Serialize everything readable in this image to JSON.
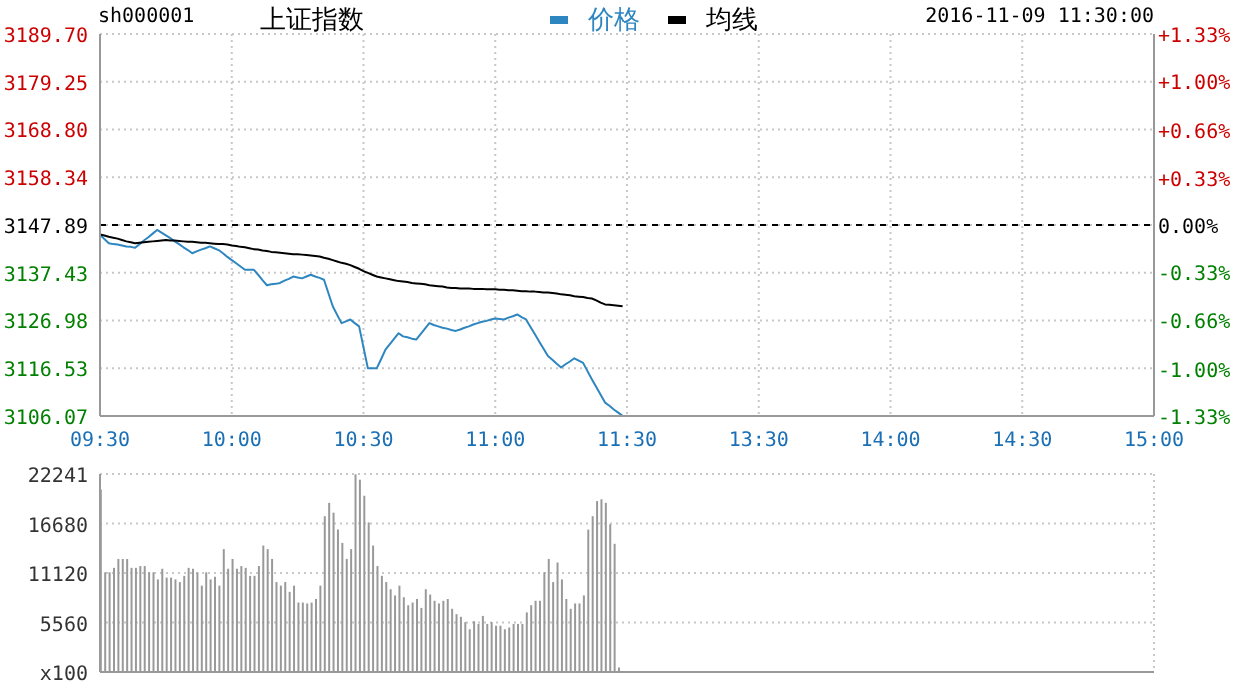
{
  "chart_data": [
    {
      "type": "line",
      "title": "上证指数",
      "annotations": [
        "sh000001",
        "2016-11-09 11:30:00"
      ],
      "categories": [
        "09:30",
        null,
        null,
        null,
        null,
        null,
        null,
        null,
        null,
        null,
        null,
        null,
        null,
        null,
        null,
        null,
        null,
        null,
        null,
        null,
        null,
        null,
        null,
        null,
        null,
        null,
        null,
        null,
        null,
        null,
        "10:00",
        null,
        null,
        null,
        null,
        null,
        null,
        null,
        null,
        null,
        null,
        null,
        null,
        null,
        null,
        null,
        null,
        null,
        null,
        null,
        null,
        null,
        null,
        null,
        null,
        null,
        null,
        null,
        null,
        null,
        "10:30",
        null,
        null,
        null,
        null,
        null,
        null,
        null,
        null,
        null,
        null,
        null,
        null,
        null,
        null,
        null,
        null,
        null,
        null,
        null,
        null,
        null,
        null,
        null,
        null,
        null,
        null,
        null,
        null,
        null,
        "11:00",
        null,
        null,
        null,
        null,
        null,
        null,
        null,
        null,
        null,
        null,
        null,
        null,
        null,
        null,
        null,
        null,
        null,
        null,
        null,
        null,
        null,
        null,
        null,
        null,
        null,
        null,
        null,
        null,
        null,
        "11:30",
        null,
        null,
        null,
        null,
        null,
        null,
        null,
        null,
        null,
        null,
        null,
        null,
        null,
        null,
        null,
        null,
        null,
        null,
        null,
        null,
        null,
        null,
        null,
        null,
        null,
        null,
        null,
        null,
        null,
        "13:30",
        null,
        null,
        null,
        null,
        null,
        null,
        null,
        null,
        null,
        null,
        null,
        null,
        null,
        null,
        null,
        null,
        null,
        null,
        null,
        null,
        null,
        null,
        null,
        null,
        null,
        null,
        null,
        null,
        null,
        "14:00",
        null,
        null,
        null,
        null,
        null,
        null,
        null,
        null,
        null,
        null,
        null,
        null,
        null,
        null,
        null,
        null,
        null,
        null,
        null,
        null,
        null,
        null,
        null,
        null,
        null,
        null,
        null,
        null,
        null,
        "14:30",
        null,
        null,
        null,
        null,
        null,
        null,
        null,
        null,
        null,
        null,
        null,
        null,
        null,
        null,
        null,
        null,
        null,
        null,
        null,
        null,
        null,
        null,
        null,
        null,
        null,
        null,
        null,
        null,
        null,
        "15:00"
      ],
      "ylim": [
        3106.07,
        3189.7
      ],
      "yticks": [
        3106.07,
        3116.53,
        3126.98,
        3137.43,
        3147.89,
        3158.34,
        {
          "value": 3168.8,
          "label": "3168.80"
        },
        3179.25,
        {
          "value": 3189.7,
          "label": "3189.70"
        }
      ],
      "y2lim": [
        -1.33,
        1.33
      ],
      "y2ticks": [
        {
          "value": -1.33,
          "label": "-1.33%"
        },
        {
          "value": -1.0,
          "label": "-1.00%"
        },
        {
          "value": -0.66,
          "label": "-0.66%"
        },
        {
          "value": -0.33,
          "label": "-0.33%"
        },
        {
          "value": 0,
          "label": "0.00%"
        },
        {
          "value": 0.33,
          "label": "+0.33%"
        },
        {
          "value": 0.66,
          "label": "+0.66%"
        },
        {
          "value": 1.0,
          "label": "+1.00%"
        },
        {
          "value": 1.33,
          "label": "+1.33%"
        }
      ],
      "grid": true,
      "legend": "top",
      "marker": "none",
      "ref_lines": [
        {
          "axis": "y",
          "value": 3147.89,
          "color": "#000000",
          "line_style": "dashed"
        }
      ],
      "series": [
        {
          "name": "价格",
          "color": "#2e86c1",
          "values": [
            3145.8,
            3144.8,
            3143.9,
            3143.7,
            3143.6,
            3143.4,
            3143.2,
            3143.1,
            3142.9,
            3143.7,
            3144.5,
            3145.2,
            3146.0,
            3146.8,
            3146.2,
            3145.6,
            3145.0,
            3144.3,
            3143.7,
            3143.0,
            3142.4,
            3141.7,
            3142.1,
            3142.5,
            3142.8,
            3143.2,
            3142.8,
            3142.4,
            3141.7,
            3140.9,
            3140.2,
            3139.5,
            3138.8,
            3138.1,
            3138.1,
            3138.1,
            3137.0,
            3135.8,
            3134.7,
            3134.9,
            3135.0,
            3135.2,
            3135.7,
            3136.1,
            3136.6,
            3136.4,
            3136.2,
            3136.6,
            3137.0,
            3136.6,
            3136.3,
            3135.9,
            3133.0,
            3130.1,
            3128.2,
            3126.4,
            3126.8,
            3127.2,
            3126.4,
            3125.7,
            3121.1,
            3116.5,
            3116.5,
            3116.5,
            3118.5,
            3120.6,
            3121.8,
            3123.0,
            3124.2,
            3123.5,
            3123.3,
            3123.0,
            3122.8,
            3124.0,
            3125.2,
            3126.4,
            3126.0,
            3125.7,
            3125.4,
            3125.2,
            3124.9,
            3124.7,
            3125.0,
            3125.4,
            3125.7,
            3126.1,
            3126.4,
            3126.7,
            3126.9,
            3127.2,
            3127.4,
            3127.3,
            3127.2,
            3127.6,
            3127.9,
            3128.3,
            3127.7,
            3127.2,
            3125.6,
            3124.0,
            3122.4,
            3120.8,
            3119.2,
            3118.4,
            3117.5,
            3116.7,
            3117.4,
            3118.0,
            3118.7,
            3118.2,
            3117.7,
            3115.9,
            3114.1,
            3112.4,
            3110.7,
            3109.0,
            3108.3,
            3107.5,
            3106.8,
            3106.1,
            null,
            null,
            null,
            null,
            null,
            null,
            null,
            null,
            null,
            null,
            null,
            null,
            null,
            null,
            null,
            null,
            null,
            null,
            null,
            null,
            null,
            null,
            null,
            null,
            null,
            null,
            null,
            null,
            null,
            null,
            null,
            null,
            null,
            null,
            null,
            null,
            null,
            null,
            null,
            null,
            null,
            null,
            null,
            null,
            null,
            null,
            null,
            null,
            null,
            null,
            null,
            null,
            null,
            null,
            null,
            null,
            null,
            null,
            null,
            null,
            null,
            null,
            null,
            null,
            null,
            null,
            null,
            null,
            null,
            null,
            null,
            null,
            null,
            null,
            null,
            null,
            null,
            null,
            null,
            null,
            null,
            null,
            null,
            null,
            null,
            null,
            null,
            null,
            null,
            null,
            null,
            null,
            null,
            null,
            null,
            null,
            null,
            null,
            null,
            null,
            null,
            null,
            null,
            null,
            null,
            null,
            null,
            null,
            null,
            null,
            null,
            null,
            null,
            null,
            null,
            null,
            null,
            null,
            null,
            null,
            null
          ]
        },
        {
          "name": "均线",
          "color": "#000000",
          "values": [
            3145.8,
            3145.6,
            3145.3,
            3145.1,
            3144.9,
            3144.6,
            3144.3,
            3144.1,
            3143.9,
            3144.0,
            3144.1,
            3144.2,
            3144.3,
            3144.4,
            3144.5,
            3144.6,
            3144.5,
            3144.5,
            3144.4,
            3144.3,
            3144.2,
            3144.2,
            3144.1,
            3144.0,
            3144.0,
            3143.9,
            3143.8,
            3143.7,
            3143.7,
            3143.6,
            3143.4,
            3143.3,
            3143.1,
            3143.0,
            3142.8,
            3142.6,
            3142.5,
            3142.3,
            3142.2,
            3142.0,
            3141.9,
            3141.8,
            3141.7,
            3141.6,
            3141.5,
            3141.5,
            3141.4,
            3141.3,
            3141.2,
            3141.1,
            3141.0,
            3140.7,
            3140.5,
            3140.2,
            3139.9,
            3139.6,
            3139.4,
            3139.1,
            3138.7,
            3138.3,
            3137.8,
            3137.4,
            3137.0,
            3136.6,
            3136.4,
            3136.2,
            3136.0,
            3135.8,
            3135.6,
            3135.5,
            3135.4,
            3135.2,
            3135.1,
            3135.0,
            3134.9,
            3134.7,
            3134.6,
            3134.5,
            3134.4,
            3134.2,
            3134.1,
            3134.1,
            3134.0,
            3134.0,
            3134.0,
            3133.9,
            3133.9,
            3133.9,
            3133.8,
            3133.8,
            3133.8,
            3133.7,
            3133.7,
            3133.6,
            3133.6,
            3133.5,
            3133.4,
            3133.4,
            3133.3,
            3133.3,
            3133.2,
            3133.1,
            3133.1,
            3133.0,
            3132.9,
            3132.7,
            3132.6,
            3132.5,
            3132.3,
            3132.2,
            3132.1,
            3131.9,
            3131.8,
            3131.4,
            3130.9,
            3130.5,
            3130.4,
            3130.3,
            3130.2,
            3130.1,
            null,
            null,
            null,
            null,
            null,
            null,
            null,
            null,
            null,
            null,
            null,
            null,
            null,
            null,
            null,
            null,
            null,
            null,
            null,
            null,
            null,
            null,
            null,
            null,
            null,
            null,
            null,
            null,
            null,
            null,
            null,
            null,
            null,
            null,
            null,
            null,
            null,
            null,
            null,
            null,
            null,
            null,
            null,
            null,
            null,
            null,
            null,
            null,
            null,
            null,
            null,
            null,
            null,
            null,
            null,
            null,
            null,
            null,
            null,
            null,
            null,
            null,
            null,
            null,
            null,
            null,
            null,
            null,
            null,
            null,
            null,
            null,
            null,
            null,
            null,
            null,
            null,
            null,
            null,
            null,
            null,
            null,
            null,
            null,
            null,
            null,
            null,
            null,
            null,
            null,
            null,
            null,
            null,
            null,
            null,
            null,
            null,
            null,
            null,
            null,
            null,
            null,
            null,
            null,
            null,
            null,
            null,
            null,
            null,
            null,
            null,
            null,
            null,
            null,
            null,
            null,
            null,
            null,
            null,
            null,
            null
          ]
        }
      ]
    },
    {
      "type": "bar",
      "color": "#999999",
      "grid": true,
      "tick_labels": "y",
      "categories": [
        null,
        null,
        null,
        null,
        null,
        null,
        null,
        null,
        null,
        null,
        null,
        null,
        null,
        null,
        null,
        null,
        null,
        null,
        null,
        null,
        null,
        null,
        null,
        null,
        null,
        null,
        null,
        null,
        null,
        null,
        null,
        null,
        null,
        null,
        null,
        null,
        null,
        null,
        null,
        null,
        null,
        null,
        null,
        null,
        null,
        null,
        null,
        null,
        null,
        null,
        null,
        null,
        null,
        null,
        null,
        null,
        null,
        null,
        null,
        null,
        null,
        null,
        null,
        null,
        null,
        null,
        null,
        null,
        null,
        null,
        null,
        null,
        null,
        null,
        null,
        null,
        null,
        null,
        null,
        null,
        null,
        null,
        null,
        null,
        null,
        null,
        null,
        null,
        null,
        null,
        null,
        null,
        null,
        null,
        null,
        null,
        null,
        null,
        null,
        null,
        null,
        null,
        null,
        null,
        null,
        null,
        null,
        null,
        null,
        null,
        null,
        null,
        null,
        null,
        null,
        null,
        null,
        null,
        null,
        null,
        null,
        null,
        null,
        null,
        null,
        null,
        null,
        null,
        null,
        null,
        null,
        null,
        null,
        null,
        null,
        null,
        null,
        null,
        null,
        null,
        null,
        null,
        null,
        null,
        null,
        null,
        null,
        null,
        null,
        null,
        null,
        null,
        null,
        null,
        null,
        null,
        null,
        null,
        null,
        null,
        null,
        null,
        null,
        null,
        null,
        null,
        null,
        null,
        null,
        null,
        null,
        null,
        null,
        null,
        null,
        null,
        null,
        null,
        null,
        null,
        null,
        null,
        null,
        null,
        null,
        null,
        null,
        null,
        null,
        null,
        null,
        null,
        null,
        null,
        null,
        null,
        null,
        null,
        null,
        null,
        null,
        null,
        null,
        null,
        null,
        null,
        null,
        null,
        null,
        null,
        null,
        null,
        null,
        null,
        null,
        null,
        null,
        null,
        null,
        null,
        null,
        null,
        null,
        null,
        null,
        null,
        null,
        null,
        null,
        null,
        null,
        null,
        null,
        null,
        null,
        null,
        null,
        null,
        null,
        null,
        null
      ],
      "ylim": [
        0,
        22241
      ],
      "yticks": [
        {
          "value": 0,
          "label": "x100"
        },
        5560,
        11120,
        16680,
        22241
      ],
      "values": [
        20500,
        11200,
        11200,
        11700,
        12700,
        12700,
        12700,
        11700,
        11700,
        11900,
        11900,
        11200,
        11200,
        10400,
        11600,
        10600,
        10600,
        10400,
        10100,
        10800,
        11700,
        11600,
        11200,
        9700,
        11200,
        10400,
        10700,
        9700,
        13800,
        11600,
        12700,
        11600,
        11900,
        11700,
        10800,
        10800,
        11900,
        14200,
        13800,
        12700,
        10100,
        9700,
        10100,
        9000,
        9700,
        7800,
        7800,
        7700,
        7800,
        8200,
        9700,
        17500,
        19000,
        17900,
        16000,
        14500,
        12700,
        13800,
        22200,
        21600,
        19800,
        16800,
        14200,
        11900,
        10800,
        10100,
        9300,
        8600,
        9700,
        8400,
        7500,
        7800,
        8200,
        7200,
        9300,
        8700,
        8000,
        7700,
        8000,
        8200,
        7100,
        6500,
        6200,
        5600,
        4800,
        5700,
        5400,
        6300,
        5400,
        5600,
        5200,
        5200,
        4800,
        5000,
        5400,
        5400,
        5400,
        6700,
        7500,
        8000,
        8000,
        11200,
        12700,
        10100,
        12300,
        10400,
        8200,
        7100,
        7700,
        7700,
        8600,
        16000,
        17500,
        19200,
        19400,
        19000,
        16600,
        14400,
        500,
        null,
        null,
        null,
        null,
        null,
        null,
        null,
        null,
        null,
        null,
        null,
        null,
        null,
        null,
        null,
        null,
        null,
        null,
        null,
        null,
        null,
        null,
        null,
        null,
        null,
        null,
        null,
        null,
        null,
        null,
        null,
        null,
        null,
        null,
        null,
        null,
        null,
        null,
        null,
        null,
        null,
        null,
        null,
        null,
        null,
        null,
        null,
        null,
        null,
        null,
        null,
        null,
        null,
        null,
        null,
        null,
        null,
        null,
        null,
        null,
        null,
        null,
        null,
        null,
        null,
        null,
        null,
        null,
        null,
        null,
        null,
        null,
        null,
        null,
        null,
        null,
        null,
        null,
        null,
        null,
        null,
        null,
        null,
        null,
        null,
        null,
        null,
        null,
        null,
        null,
        null,
        null,
        null,
        null,
        null,
        null,
        null,
        null,
        null,
        null,
        null,
        null,
        null,
        null,
        null,
        null,
        null,
        null,
        null,
        null,
        null,
        null,
        null,
        null,
        null,
        null,
        null,
        null,
        null,
        null,
        null,
        null
      ]
    }
  ]
}
